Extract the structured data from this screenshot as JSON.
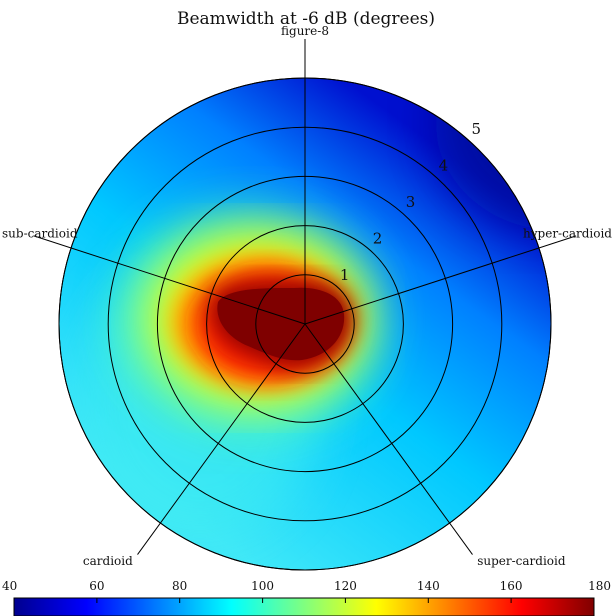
{
  "chart_data": {
    "type": "heatmap",
    "subtype": "polar",
    "title": "Beamwidth at -6 dB (degrees)",
    "radial_ticks": [
      1,
      2,
      3,
      4,
      5
    ],
    "radial_range": [
      0,
      5
    ],
    "spokes": [
      {
        "label": "figure-8",
        "angle_deg": 90
      },
      {
        "label": "hyper-cardioid",
        "angle_deg": 18
      },
      {
        "label": "super-cardioid",
        "angle_deg": -54
      },
      {
        "label": "cardioid",
        "angle_deg": -126
      },
      {
        "label": "sub-cardioid",
        "angle_deg": 162
      }
    ],
    "colorbar": {
      "range": [
        40,
        180
      ],
      "ticks": [
        "40",
        "60",
        "80",
        "100",
        "120",
        "140",
        "160",
        "180"
      ],
      "colormap": "jet"
    },
    "field": {
      "peak_value": 180,
      "peak_region": "near center, toward sub-cardioid / cardioid",
      "low_value": 40,
      "low_region": "outer ring toward hyper-cardioid / figure-8 (upper right)"
    }
  }
}
